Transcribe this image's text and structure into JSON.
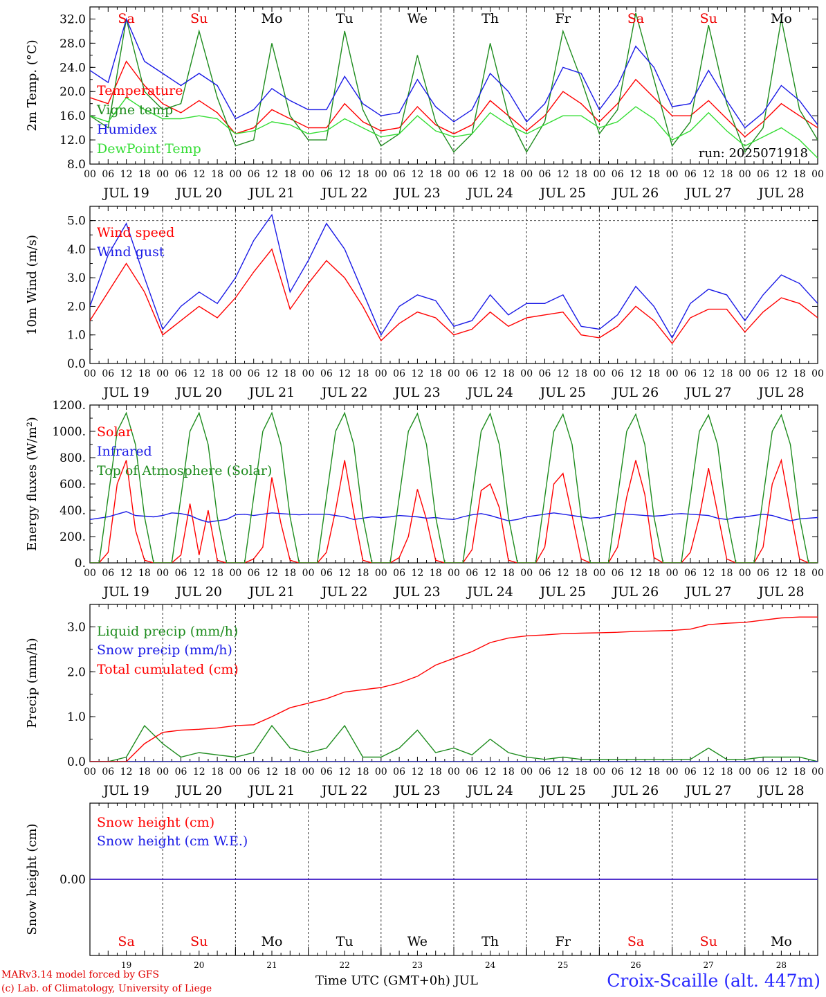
{
  "run_label": "run: 2025071918",
  "days": [
    {
      "abbr": "Sa",
      "label": "JUL 19",
      "num": "19",
      "weekend": true
    },
    {
      "abbr": "Su",
      "label": "JUL 20",
      "num": "20",
      "weekend": true
    },
    {
      "abbr": "Mo",
      "label": "JUL 21",
      "num": "21",
      "weekend": false
    },
    {
      "abbr": "Tu",
      "label": "JUL 22",
      "num": "22",
      "weekend": false
    },
    {
      "abbr": "We",
      "label": "JUL 23",
      "num": "23",
      "weekend": false
    },
    {
      "abbr": "Th",
      "label": "JUL 24",
      "num": "24",
      "weekend": false
    },
    {
      "abbr": "Fr",
      "label": "JUL 25",
      "num": "25",
      "weekend": false
    },
    {
      "abbr": "Sa",
      "label": "JUL 26",
      "num": "26",
      "weekend": true
    },
    {
      "abbr": "Su",
      "label": "JUL 27",
      "num": "27",
      "weekend": true
    },
    {
      "abbr": "Mo",
      "label": "JUL 28",
      "num": "28",
      "weekend": false
    }
  ],
  "hour_ticks": [
    "00",
    "06",
    "12",
    "18"
  ],
  "colors": {
    "red": "#ff0000",
    "green": "#1e8c1e",
    "blue": "#1a1ae6",
    "light_green": "#33dd33",
    "weekend": "#ee0000",
    "axis": "#000000"
  },
  "footer": {
    "model": "MARv3.14 model forced by GFS",
    "credit": "(c) Lab. of Climatology, University of Liege",
    "xlabel": "Time UTC (GMT+0h) JUL",
    "station": "Croix-Scaille (alt. 447m)"
  },
  "chart_data": [
    {
      "type": "line",
      "ylabel": "2m Temp. (°C)",
      "ylim": [
        8,
        34
      ],
      "yticks": [
        "8.0",
        "12.0",
        "16.0",
        "20.0",
        "24.0",
        "28.0",
        "32.0"
      ],
      "grid": "vertical dashed at midnight",
      "legend_placement": "left",
      "x_hours": [
        0,
        6,
        12,
        18,
        24,
        30,
        36,
        42,
        48,
        54,
        60,
        66,
        72,
        78,
        84,
        90,
        96,
        102,
        108,
        114,
        120,
        126,
        132,
        138,
        144,
        150,
        156,
        162,
        168,
        174,
        180,
        186,
        192,
        198,
        204,
        210,
        216,
        222,
        228,
        234,
        240
      ],
      "series": [
        {
          "name": "Temperature",
          "color": "red",
          "values": [
            19,
            18,
            25,
            21,
            18,
            16.5,
            18.5,
            16.5,
            13,
            14,
            17,
            15.5,
            14,
            14,
            18,
            15,
            13.5,
            14,
            17.5,
            14.5,
            13,
            14.5,
            18.5,
            16,
            13.5,
            16,
            20,
            18,
            15,
            18,
            22,
            19,
            16,
            16,
            18.5,
            15.5,
            12.5,
            15,
            18,
            16,
            14
          ]
        },
        {
          "name": "Vigne temp",
          "color": "green",
          "values": [
            16,
            14,
            32,
            20,
            17,
            18,
            30,
            19,
            11,
            12,
            28,
            16,
            12,
            12,
            30,
            17,
            11,
            13,
            26,
            15,
            10,
            13,
            28,
            16,
            10,
            15,
            30,
            22,
            13,
            17,
            33,
            22,
            11,
            15,
            31,
            18,
            10,
            14,
            32,
            17,
            12
          ]
        },
        {
          "name": "Humidex",
          "color": "blue",
          "values": [
            23.5,
            21.5,
            32,
            25,
            23,
            21,
            23,
            21,
            15.5,
            17,
            20.5,
            18.5,
            17,
            17,
            22.5,
            18,
            16,
            16.5,
            22,
            17.5,
            15,
            17,
            23,
            20,
            15,
            18,
            24,
            23,
            17,
            21,
            27.5,
            24,
            17.5,
            18,
            23.5,
            18.5,
            14,
            16.5,
            21,
            18.5,
            14.5
          ]
        },
        {
          "name": "DewPoint Temp",
          "color": "light_green",
          "values": [
            16,
            15,
            19,
            17,
            15.5,
            15.5,
            16,
            15.5,
            13,
            13.5,
            15,
            14.5,
            13,
            13.5,
            15.5,
            14,
            12.5,
            13,
            16,
            13.5,
            12.5,
            13,
            16.5,
            14.5,
            13,
            14.5,
            16,
            16,
            14,
            15,
            17.5,
            15.5,
            12,
            13.5,
            16.5,
            13.5,
            11,
            12.5,
            14,
            12,
            9
          ]
        }
      ]
    },
    {
      "type": "line",
      "ylabel": "10m Wind (m/s)",
      "ylim": [
        0,
        5.5
      ],
      "yticks": [
        "0.0",
        "1.0",
        "2.0",
        "3.0",
        "4.0",
        "5.0"
      ],
      "reference_line": 5.0,
      "legend_placement": "left",
      "x_hours": [
        0,
        6,
        12,
        18,
        24,
        30,
        36,
        42,
        48,
        54,
        60,
        66,
        72,
        78,
        84,
        90,
        96,
        102,
        108,
        114,
        120,
        126,
        132,
        138,
        144,
        150,
        156,
        162,
        168,
        174,
        180,
        186,
        192,
        198,
        204,
        210,
        216,
        222,
        228,
        234,
        240
      ],
      "series": [
        {
          "name": "Wind speed",
          "color": "red",
          "values": [
            1.5,
            2.5,
            3.5,
            2.5,
            1.0,
            1.5,
            2.0,
            1.6,
            2.3,
            3.2,
            4.0,
            1.9,
            2.8,
            3.6,
            3.0,
            2.0,
            0.8,
            1.4,
            1.8,
            1.6,
            1.0,
            1.2,
            1.8,
            1.3,
            1.6,
            1.7,
            1.8,
            1.0,
            0.9,
            1.3,
            2.0,
            1.5,
            0.7,
            1.6,
            1.9,
            1.9,
            1.1,
            1.8,
            2.3,
            2.1,
            1.6
          ]
        },
        {
          "name": "Wind gust",
          "color": "blue",
          "values": [
            2.0,
            3.8,
            4.9,
            3.0,
            1.2,
            2.0,
            2.5,
            2.1,
            3.0,
            4.3,
            5.2,
            2.5,
            3.6,
            4.9,
            4.0,
            2.5,
            1.0,
            2.0,
            2.4,
            2.2,
            1.3,
            1.5,
            2.4,
            1.7,
            2.1,
            2.1,
            2.4,
            1.3,
            1.2,
            1.7,
            2.7,
            2.0,
            0.9,
            2.1,
            2.6,
            2.4,
            1.5,
            2.4,
            3.1,
            2.8,
            2.1
          ]
        }
      ]
    },
    {
      "type": "line",
      "ylabel": "Energy fluxes (W/m²)",
      "ylim": [
        0,
        1200
      ],
      "yticks": [
        "0.",
        "200.",
        "400.",
        "600.",
        "800.",
        "1000.",
        "1200."
      ],
      "legend_placement": "left",
      "x_hours": [
        0,
        3,
        6,
        9,
        12,
        15,
        18,
        21,
        24,
        27,
        30,
        33,
        36,
        39,
        42,
        45,
        48,
        51,
        54,
        57,
        60,
        63,
        66,
        69,
        72,
        75,
        78,
        81,
        84,
        87,
        90,
        93,
        96,
        99,
        102,
        105,
        108,
        111,
        114,
        117,
        120,
        123,
        126,
        129,
        132,
        135,
        138,
        141,
        144,
        147,
        150,
        153,
        156,
        159,
        162,
        165,
        168,
        171,
        174,
        177,
        180,
        183,
        186,
        189,
        192,
        195,
        198,
        201,
        204,
        207,
        210,
        213,
        216,
        219,
        222,
        225,
        228,
        231,
        234,
        237,
        240
      ],
      "series": [
        {
          "name": "Solar",
          "color": "red",
          "values": [
            0,
            0,
            80,
            600,
            780,
            250,
            20,
            0,
            0,
            0,
            60,
            450,
            60,
            400,
            20,
            0,
            0,
            0,
            30,
            120,
            650,
            300,
            20,
            0,
            0,
            0,
            80,
            400,
            780,
            380,
            20,
            0,
            0,
            0,
            40,
            200,
            560,
            330,
            20,
            0,
            0,
            0,
            100,
            550,
            600,
            420,
            20,
            0,
            0,
            0,
            120,
            600,
            680,
            360,
            30,
            0,
            0,
            0,
            120,
            500,
            780,
            520,
            40,
            0,
            0,
            0,
            80,
            350,
            720,
            380,
            30,
            0,
            0,
            0,
            120,
            600,
            780,
            400,
            30,
            0,
            0
          ]
        },
        {
          "name": "Infrared",
          "color": "blue",
          "values": [
            330,
            340,
            350,
            370,
            390,
            360,
            355,
            350,
            360,
            380,
            375,
            360,
            330,
            310,
            320,
            330,
            365,
            370,
            360,
            370,
            380,
            375,
            370,
            365,
            370,
            370,
            370,
            360,
            350,
            330,
            340,
            350,
            345,
            350,
            360,
            355,
            350,
            340,
            345,
            335,
            330,
            350,
            365,
            375,
            360,
            340,
            320,
            330,
            350,
            360,
            370,
            380,
            370,
            360,
            350,
            340,
            345,
            360,
            375,
            370,
            365,
            360,
            355,
            360,
            370,
            375,
            370,
            365,
            360,
            340,
            330,
            345,
            350,
            360,
            370,
            360,
            340,
            320,
            335,
            340,
            345
          ]
        },
        {
          "name": "Top of Atmosphere (Solar)",
          "color": "green",
          "values": [
            0,
            0,
            500,
            1000,
            1140,
            900,
            350,
            0,
            0,
            0,
            500,
            1000,
            1140,
            900,
            350,
            0,
            0,
            0,
            500,
            1000,
            1140,
            900,
            350,
            0,
            0,
            0,
            500,
            1000,
            1140,
            900,
            350,
            0,
            0,
            0,
            500,
            1000,
            1135,
            900,
            350,
            0,
            0,
            0,
            500,
            1000,
            1135,
            900,
            350,
            0,
            0,
            0,
            500,
            1000,
            1130,
            900,
            350,
            0,
            0,
            0,
            500,
            1000,
            1130,
            900,
            350,
            0,
            0,
            0,
            500,
            1000,
            1125,
            900,
            350,
            0,
            0,
            0,
            500,
            1000,
            1125,
            900,
            350,
            0,
            0
          ]
        }
      ]
    },
    {
      "type": "line",
      "ylabel": "Precip (mm/h)",
      "ylim": [
        0,
        3.5
      ],
      "yticks": [
        "0.0",
        "1.0",
        "2.0",
        "3.0"
      ],
      "legend_placement": "left",
      "x_hours": [
        0,
        6,
        12,
        18,
        24,
        30,
        36,
        42,
        48,
        54,
        60,
        66,
        72,
        78,
        84,
        90,
        96,
        102,
        108,
        114,
        120,
        126,
        132,
        138,
        144,
        150,
        156,
        162,
        168,
        174,
        180,
        186,
        192,
        198,
        204,
        210,
        216,
        222,
        228,
        234,
        240
      ],
      "series": [
        {
          "name": "Liquid precip (mm/h)",
          "color": "green",
          "values": [
            0,
            0,
            0.1,
            0.8,
            0.4,
            0.1,
            0.2,
            0.15,
            0.1,
            0.2,
            0.8,
            0.3,
            0.2,
            0.3,
            0.8,
            0.1,
            0.1,
            0.3,
            0.7,
            0.2,
            0.3,
            0.15,
            0.5,
            0.2,
            0.1,
            0.05,
            0.1,
            0.05,
            0.05,
            0.05,
            0.05,
            0.05,
            0.05,
            0.05,
            0.3,
            0.05,
            0.05,
            0.1,
            0.1,
            0.1,
            0.0
          ]
        },
        {
          "name": "Snow precip (mm/h)",
          "color": "blue",
          "values": [
            0,
            0,
            0,
            0,
            0,
            0,
            0,
            0,
            0,
            0,
            0,
            0,
            0,
            0,
            0,
            0,
            0,
            0,
            0,
            0,
            0,
            0,
            0,
            0,
            0,
            0,
            0,
            0,
            0,
            0,
            0,
            0,
            0,
            0,
            0,
            0,
            0,
            0,
            0,
            0,
            0
          ]
        },
        {
          "name": "Total cumulated (cm)",
          "color": "red",
          "values": [
            0,
            0,
            0,
            0.4,
            0.65,
            0.7,
            0.72,
            0.75,
            0.8,
            0.82,
            1.0,
            1.2,
            1.3,
            1.4,
            1.55,
            1.6,
            1.65,
            1.75,
            1.9,
            2.15,
            2.3,
            2.45,
            2.65,
            2.75,
            2.8,
            2.82,
            2.85,
            2.86,
            2.87,
            2.88,
            2.9,
            2.91,
            2.92,
            2.95,
            3.05,
            3.08,
            3.1,
            3.15,
            3.2,
            3.22,
            3.22
          ]
        }
      ]
    },
    {
      "type": "line",
      "ylabel": "Snow height (cm)",
      "yticks": [
        "0.00"
      ],
      "ylim": [
        -1,
        1
      ],
      "legend_placement": "left",
      "x_hours": [
        0,
        240
      ],
      "series": [
        {
          "name": "Snow height (cm)",
          "color": "red",
          "values": [
            0,
            0
          ]
        },
        {
          "name": "Snow height (cm W.E.)",
          "color": "blue",
          "values": [
            0,
            0
          ]
        }
      ]
    }
  ]
}
